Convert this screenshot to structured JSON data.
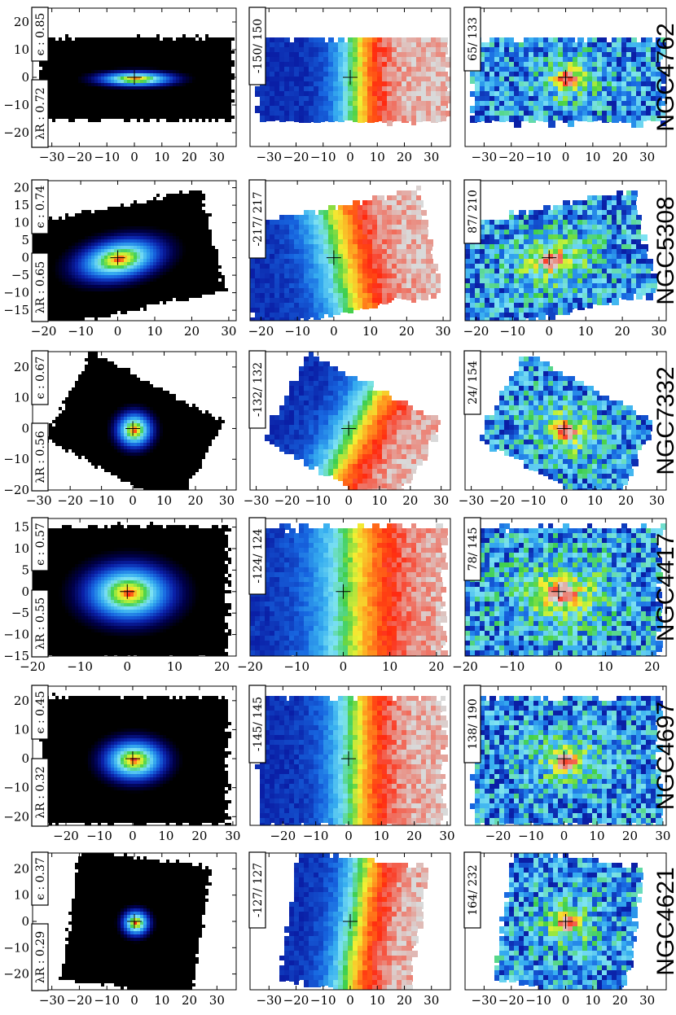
{
  "chart_data": [
    {
      "type": "heatmap",
      "kind": "flux",
      "galaxy": "NGC4762",
      "ellipticity_label": "ϵ : 0.85",
      "lambda_label": "λR : 0.72",
      "xticks": [
        -30,
        -20,
        -10,
        0,
        10,
        20,
        30
      ],
      "yticks": [
        -20,
        -10,
        0,
        10,
        20
      ],
      "xlim": [
        -37,
        37
      ],
      "ylim": [
        -25,
        25
      ]
    },
    {
      "type": "heatmap",
      "kind": "velocity",
      "galaxy": "NGC4762",
      "range_label": "-150/ 150",
      "xticks": [
        -30,
        -20,
        -10,
        0,
        10,
        20,
        30
      ],
      "xlim": [
        -37,
        37
      ],
      "ylim": [
        -25,
        25
      ]
    },
    {
      "type": "heatmap",
      "kind": "dispersion",
      "galaxy": "NGC4762",
      "range_label": "65/ 133",
      "name_label": "NGC4762",
      "xticks": [
        -30,
        -20,
        -10,
        0,
        10,
        20,
        30
      ],
      "xlim": [
        -37,
        37
      ],
      "ylim": [
        -25,
        25
      ]
    },
    {
      "type": "heatmap",
      "kind": "flux",
      "galaxy": "NGC5308",
      "ellipticity_label": "ϵ : 0.74",
      "lambda_label": "λR : 0.65",
      "xticks": [
        -20,
        -10,
        0,
        10,
        20,
        30
      ],
      "yticks": [
        -15,
        -10,
        -5,
        0,
        5,
        10,
        15,
        20
      ],
      "xlim": [
        -23,
        32
      ],
      "ylim": [
        -18,
        22
      ]
    },
    {
      "type": "heatmap",
      "kind": "velocity",
      "galaxy": "NGC5308",
      "range_label": "-217/ 217",
      "xticks": [
        -20,
        -10,
        0,
        10,
        20,
        30
      ],
      "xlim": [
        -23,
        32
      ],
      "ylim": [
        -18,
        22
      ]
    },
    {
      "type": "heatmap",
      "kind": "dispersion",
      "galaxy": "NGC5308",
      "range_label": "87/ 210",
      "name_label": "NGC5308",
      "xticks": [
        -20,
        -10,
        0,
        10,
        20,
        30
      ],
      "xlim": [
        -23,
        32
      ],
      "ylim": [
        -18,
        22
      ]
    },
    {
      "type": "heatmap",
      "kind": "flux",
      "galaxy": "NGC7332",
      "ellipticity_label": "ϵ : 0.67",
      "lambda_label": "λR : 0.56",
      "xticks": [
        -30,
        -20,
        -10,
        0,
        10,
        20,
        30
      ],
      "yticks": [
        -20,
        -10,
        0,
        10,
        20
      ],
      "xlim": [
        -32,
        33
      ],
      "ylim": [
        -20,
        25
      ]
    },
    {
      "type": "heatmap",
      "kind": "velocity",
      "galaxy": "NGC7332",
      "range_label": "-132/ 132",
      "xticks": [
        -30,
        -20,
        -10,
        0,
        10,
        20,
        30
      ],
      "xlim": [
        -32,
        33
      ],
      "ylim": [
        -20,
        25
      ]
    },
    {
      "type": "heatmap",
      "kind": "dispersion",
      "galaxy": "NGC7332",
      "range_label": "24/ 154",
      "name_label": "NGC7332",
      "xticks": [
        -30,
        -20,
        -10,
        0,
        10,
        20,
        30
      ],
      "xlim": [
        -32,
        33
      ],
      "ylim": [
        -20,
        25
      ]
    },
    {
      "type": "heatmap",
      "kind": "flux",
      "galaxy": "NGC4417",
      "ellipticity_label": "ϵ : 0.57",
      "lambda_label": "λR : 0.55",
      "xticks": [
        -20,
        -10,
        0,
        10,
        20
      ],
      "yticks": [
        -15,
        -10,
        -5,
        0,
        5,
        10,
        15
      ],
      "xlim": [
        -20,
        23
      ],
      "ylim": [
        -15,
        17
      ]
    },
    {
      "type": "heatmap",
      "kind": "velocity",
      "galaxy": "NGC4417",
      "range_label": "-124/ 124",
      "xticks": [
        -20,
        -10,
        0,
        10,
        20
      ],
      "xlim": [
        -20,
        23
      ],
      "ylim": [
        -15,
        17
      ]
    },
    {
      "type": "heatmap",
      "kind": "dispersion",
      "galaxy": "NGC4417",
      "range_label": "78/ 145",
      "name_label": "NGC4417",
      "xticks": [
        -20,
        -10,
        0,
        10,
        20
      ],
      "xlim": [
        -20,
        23
      ],
      "ylim": [
        -15,
        17
      ]
    },
    {
      "type": "heatmap",
      "kind": "flux",
      "galaxy": "NGC4697",
      "ellipticity_label": "ϵ : 0.45",
      "lambda_label": "λR : 0.32",
      "xticks": [
        -20,
        -10,
        0,
        10,
        20,
        30
      ],
      "yticks": [
        -20,
        -10,
        0,
        10,
        20
      ],
      "xlim": [
        -30,
        31
      ],
      "ylim": [
        -23,
        25
      ]
    },
    {
      "type": "heatmap",
      "kind": "velocity",
      "galaxy": "NGC4697",
      "range_label": "-145/ 145",
      "xticks": [
        -20,
        -10,
        0,
        10,
        20,
        30
      ],
      "xlim": [
        -30,
        31
      ],
      "ylim": [
        -23,
        25
      ]
    },
    {
      "type": "heatmap",
      "kind": "dispersion",
      "galaxy": "NGC4697",
      "range_label": "138/ 190",
      "name_label": "NGC4697",
      "xticks": [
        -20,
        -10,
        0,
        10,
        20,
        30
      ],
      "xlim": [
        -30,
        31
      ],
      "ylim": [
        -23,
        25
      ]
    },
    {
      "type": "heatmap",
      "kind": "flux",
      "galaxy": "NGC4621",
      "ellipticity_label": "ϵ : 0.37",
      "lambda_label": "λR : 0.29",
      "xticks": [
        -30,
        -20,
        -10,
        0,
        10,
        20,
        30
      ],
      "yticks": [
        -20,
        -10,
        0,
        10,
        20
      ],
      "xlim": [
        -37,
        37
      ],
      "ylim": [
        -26,
        26
      ]
    },
    {
      "type": "heatmap",
      "kind": "velocity",
      "galaxy": "NGC4621",
      "range_label": "-127/ 127",
      "xticks": [
        -30,
        -20,
        -10,
        0,
        10,
        20,
        30
      ],
      "xlim": [
        -37,
        37
      ],
      "ylim": [
        -26,
        26
      ]
    },
    {
      "type": "heatmap",
      "kind": "dispersion",
      "galaxy": "NGC4621",
      "range_label": "164/ 232",
      "name_label": "NGC4621",
      "xticks": [
        -30,
        -20,
        -10,
        0,
        10,
        20,
        30
      ],
      "xlim": [
        -37,
        37
      ],
      "ylim": [
        -26,
        26
      ]
    }
  ],
  "colors": {
    "colormap": [
      "#000000",
      "#00004a",
      "#0a1fa6",
      "#1766e0",
      "#37aef0",
      "#7ee3f2",
      "#3ecf4b",
      "#b9f03b",
      "#f2f034",
      "#ff9a1f",
      "#ff2a10",
      "#d9d9d9"
    ],
    "velocity_colormap": [
      "#0a1fa6",
      "#1766e0",
      "#37aef0",
      "#7ee3f2",
      "#3ecf4b",
      "#f2f034",
      "#ff9a1f",
      "#ff2a10",
      "#d9d9d9"
    ]
  }
}
